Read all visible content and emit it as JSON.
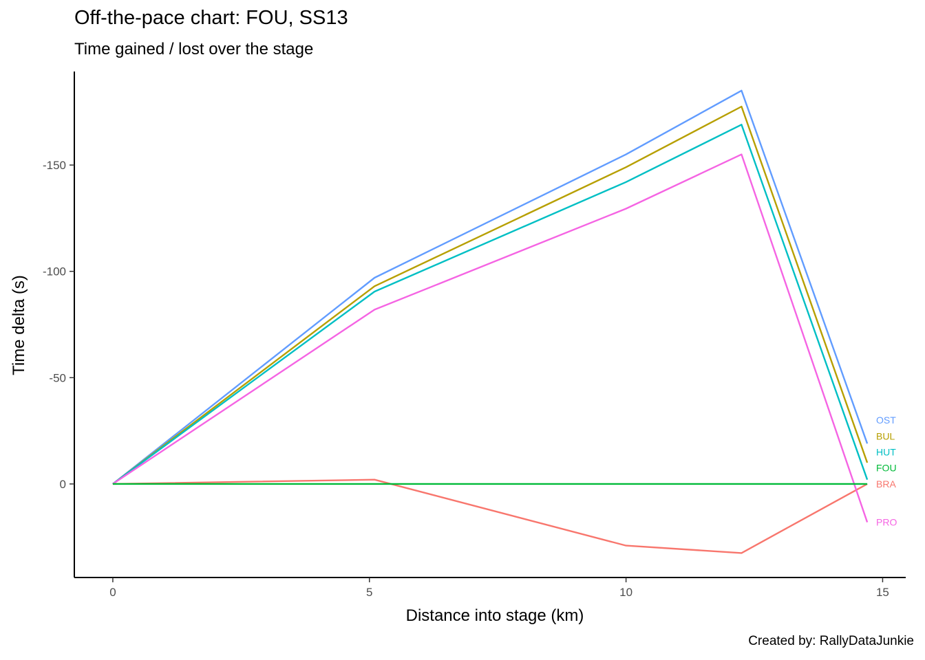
{
  "chart_data": {
    "type": "line",
    "title": "Off-the-pace chart: FOU, SS13",
    "subtitle": "Time gained / lost over the stage",
    "caption": "Created by: RallyDataJunkie",
    "xlabel": "Distance into stage (km)",
    "ylabel": "Time delta (s)",
    "xlim": [
      -0.75,
      15.45
    ],
    "ylim": [
      44,
      -194
    ],
    "y_reversed": true,
    "x_ticks": [
      0,
      5,
      10,
      15
    ],
    "y_ticks": [
      0,
      -50,
      -100,
      -150
    ],
    "grid": false,
    "legend": "none",
    "series": [
      {
        "name": "OST",
        "color": "#619CFF",
        "x": [
          0,
          5.1,
          10,
          12.25,
          14.7
        ],
        "y": [
          0,
          -97,
          -155,
          -185,
          -19
        ]
      },
      {
        "name": "BUL",
        "color": "#B79F00",
        "x": [
          0,
          5.1,
          10,
          12.25,
          14.7
        ],
        "y": [
          0,
          -93,
          -149,
          -177.5,
          -10
        ]
      },
      {
        "name": "HUT",
        "color": "#00BFC4",
        "x": [
          0,
          5.1,
          10,
          12.25,
          14.7
        ],
        "y": [
          0,
          -90.5,
          -142,
          -169,
          -2
        ]
      },
      {
        "name": "FOU",
        "color": "#00BA38",
        "x": [
          0,
          5.1,
          10,
          12.25,
          14.7
        ],
        "y": [
          0,
          0,
          0,
          0,
          0
        ]
      },
      {
        "name": "BRA",
        "color": "#F8766D",
        "x": [
          0,
          5.1,
          10,
          12.25,
          14.7
        ],
        "y": [
          0,
          -2,
          29,
          32.5,
          0
        ]
      },
      {
        "name": "PRO",
        "color": "#F564E3",
        "x": [
          0,
          5.1,
          10,
          12.25,
          14.7
        ],
        "y": [
          0,
          -82,
          -129.5,
          -155,
          18
        ]
      }
    ],
    "end_labels": [
      {
        "name": "OST",
        "y": -30
      },
      {
        "name": "BUL",
        "y": -22.5
      },
      {
        "name": "HUT",
        "y": -15
      },
      {
        "name": "FOU",
        "y": -7.5
      },
      {
        "name": "BRA",
        "y": 0
      },
      {
        "name": "PRO",
        "y": 18
      }
    ]
  }
}
